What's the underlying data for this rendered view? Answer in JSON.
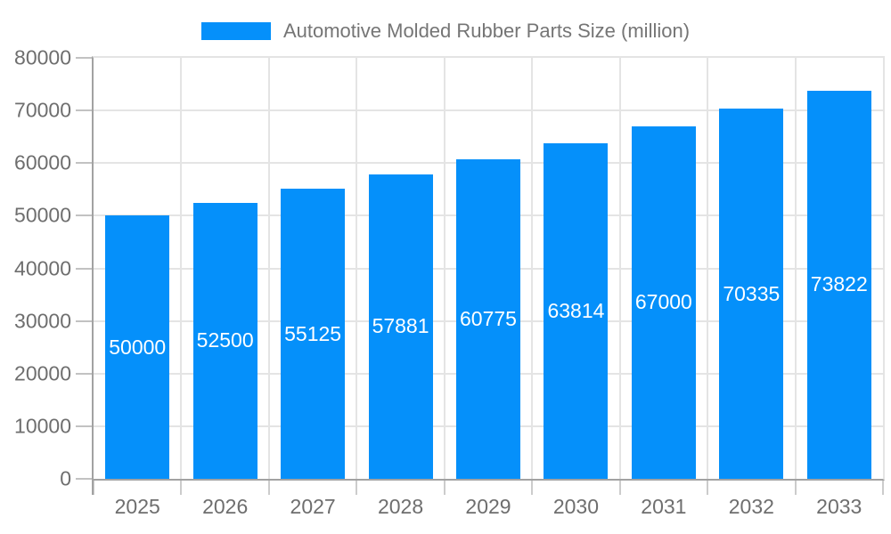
{
  "legend": {
    "label": "Automotive Molded Rubber Parts Size (million)"
  },
  "colors": {
    "bar": "#0590fa",
    "axis_line": "#a2a2a2",
    "gridline": "#e4e4e4",
    "tick_mark": "#c2c2c2",
    "axis_text": "#6e6e6e",
    "legend_text": "#757575",
    "value_label": "#ffffff"
  },
  "chart_data": {
    "type": "bar",
    "title": "Automotive Molded Rubber Parts Size (million)",
    "categories": [
      "2025",
      "2026",
      "2027",
      "2028",
      "2029",
      "2030",
      "2031",
      "2032",
      "2033"
    ],
    "values": [
      50000,
      52500,
      55125,
      57881,
      60775,
      63814,
      67000,
      70335,
      73822
    ],
    "xlabel": "",
    "ylabel": "",
    "ylim": [
      0,
      80000
    ],
    "yticks": [
      0,
      10000,
      20000,
      30000,
      40000,
      50000,
      60000,
      70000,
      80000
    ],
    "grid": true,
    "legend_position": "top",
    "bar_color": "#0590fa",
    "value_labels_inside_bars": true
  }
}
